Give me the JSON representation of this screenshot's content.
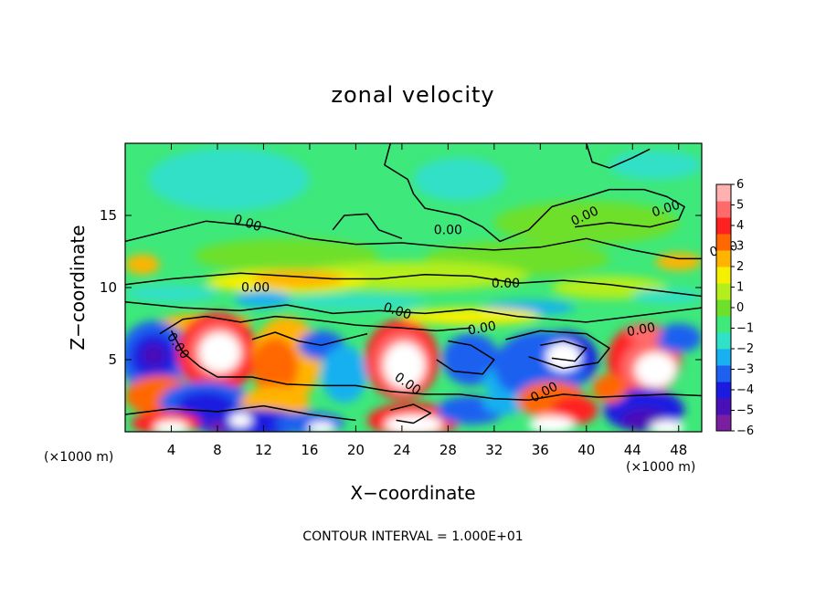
{
  "chart_data": {
    "type": "heatmap",
    "title": "zonal velocity",
    "xlabel": "X−coordinate",
    "ylabel": "Z−coordinate",
    "x_unit_label": "(×1000 m)",
    "z_unit_label": "(×1000 m)",
    "xlim": [
      0,
      50
    ],
    "ylim": [
      0,
      20
    ],
    "x_ticks": [
      4,
      8,
      12,
      16,
      20,
      24,
      28,
      32,
      36,
      40,
      44,
      48
    ],
    "y_ticks": [
      5,
      10,
      15
    ],
    "colorbar": {
      "ticks": [
        "6",
        "5",
        "4",
        "3",
        "2",
        "1",
        "0",
        "−1",
        "−2",
        "−3",
        "−4",
        "−5",
        "−6"
      ],
      "range": [
        -6,
        6
      ],
      "colors": [
        "#7a1fa2",
        "#4a10b8",
        "#1a1ae0",
        "#1e60f0",
        "#18b0f0",
        "#30e0c8",
        "#3ee87a",
        "#6ee02a",
        "#b4ee1c",
        "#f4f000",
        "#ffb400",
        "#ff6800",
        "#ff2020",
        "#ff6a6a",
        "#ffb0b0"
      ]
    },
    "contour_label": "0.00",
    "contour_interval_text": "CONTOUR INTERVAL = 1.000E+01"
  }
}
